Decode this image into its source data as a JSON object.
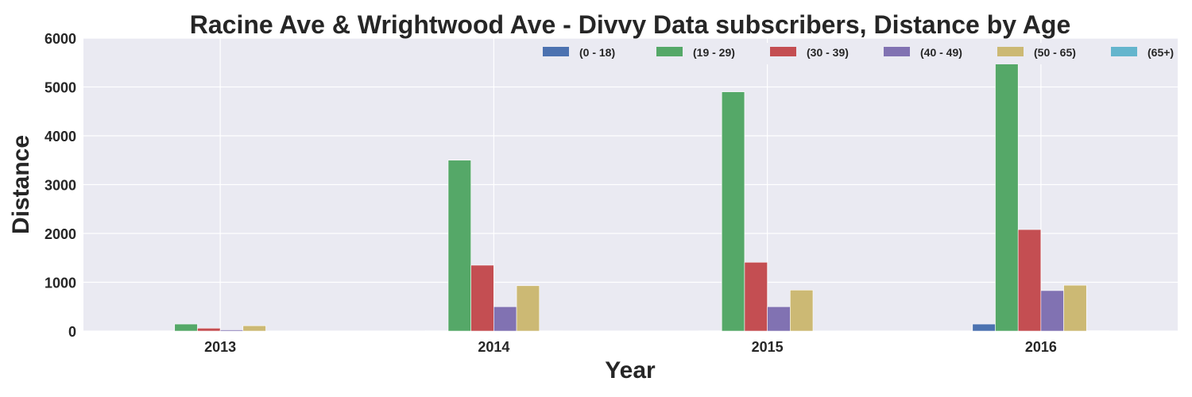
{
  "chart_data": {
    "type": "bar",
    "title": "Racine Ave & Wrightwood Ave - Divvy Data subscribers, Distance by Age",
    "xlabel": "Year",
    "ylabel": "Distance",
    "categories": [
      "2013",
      "2014",
      "2015",
      "2016"
    ],
    "ylim": [
      0,
      6000
    ],
    "yticks": [
      0,
      1000,
      2000,
      3000,
      4000,
      5000,
      6000
    ],
    "grid": true,
    "legend_position": "top-right",
    "series": [
      {
        "name": "(0 - 18)",
        "color": "#4C72B0",
        "values": [
          5,
          10,
          10,
          145
        ]
      },
      {
        "name": "(19 - 29)",
        "color": "#55A868",
        "values": [
          145,
          3500,
          4900,
          5480
        ]
      },
      {
        "name": "(30 - 39)",
        "color": "#C44E52",
        "values": [
          60,
          1350,
          1410,
          2080
        ]
      },
      {
        "name": "(40 - 49)",
        "color": "#8172B2",
        "values": [
          25,
          500,
          500,
          830
        ]
      },
      {
        "name": "(50 - 65)",
        "color": "#CCB974",
        "values": [
          110,
          930,
          840,
          940
        ]
      },
      {
        "name": "(65+)",
        "color": "#64B5CD",
        "values": [
          3,
          5,
          3,
          8
        ]
      }
    ]
  }
}
